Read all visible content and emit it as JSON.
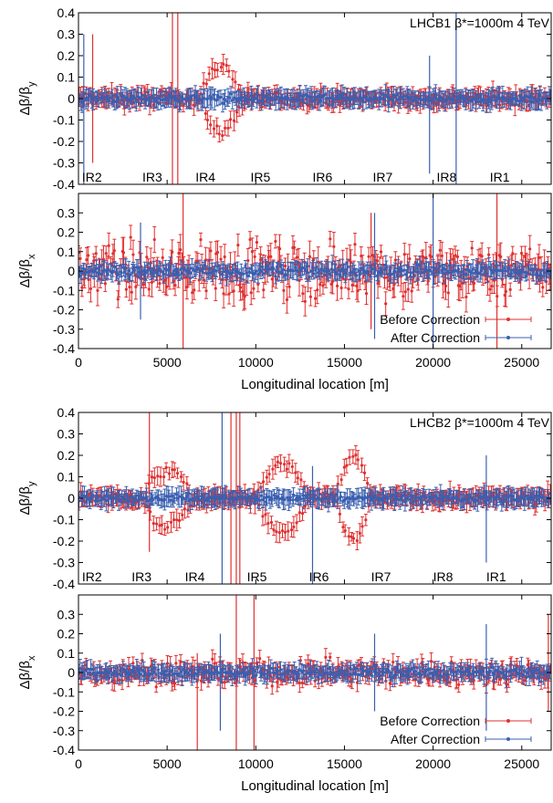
{
  "chart_data": [
    {
      "type": "scatter",
      "title": "LHCB1 β*=1000m 4 TeV",
      "ylabel": "Δβ/β_y",
      "ylabel_main": "Δβ/β",
      "ylabel_sub": "y",
      "xlabel": "",
      "xlim": [
        0,
        26659
      ],
      "ylim": [
        -0.4,
        0.4
      ],
      "yticks": [
        "-0.4",
        "-0.3",
        "-0.2",
        "-0.1",
        "0",
        "0.1",
        "0.2",
        "0.3",
        "0.4"
      ],
      "ip_labels": [
        {
          "text": "IR2",
          "x": 200
        },
        {
          "text": "IR3",
          "x": 3600
        },
        {
          "text": "IR4",
          "x": 6600
        },
        {
          "text": "IR5",
          "x": 9700
        },
        {
          "text": "IR6",
          "x": 13200
        },
        {
          "text": "IR7",
          "x": 16600
        },
        {
          "text": "IR8",
          "x": 20200
        },
        {
          "text": "IR1",
          "x": 23200
        }
      ],
      "series": [
        {
          "name": "Before Correction",
          "color": "#e03030",
          "spread": 0.045,
          "bumps": [
            {
              "x0": 6800,
              "x1": 9300,
              "amp": 0.15
            }
          ],
          "spikes": [
            {
              "x": 5300,
              "lo": -0.4,
              "hi": 0.4
            },
            {
              "x": 5600,
              "lo": -0.4,
              "hi": 0.4
            },
            {
              "x": 800,
              "lo": -0.3,
              "hi": 0.3
            }
          ]
        },
        {
          "name": "After Correction",
          "color": "#3a5fb0",
          "spread": 0.025,
          "bumps": [],
          "spikes": [
            {
              "x": 300,
              "lo": -0.4,
              "hi": 0.3
            },
            {
              "x": 21300,
              "lo": -0.4,
              "hi": 0.4
            },
            {
              "x": 19800,
              "lo": -0.35,
              "hi": 0.2
            }
          ]
        }
      ]
    },
    {
      "type": "scatter",
      "title": "",
      "ylabel": "Δβ/β_x",
      "ylabel_main": "Δβ/β",
      "ylabel_sub": "x",
      "xlabel": "Longitudinal location [m]",
      "xlim": [
        0,
        26659
      ],
      "ylim": [
        -0.4,
        0.4
      ],
      "xticks": [
        "0",
        "5000",
        "10000",
        "15000",
        "20000",
        "25000"
      ],
      "yticks": [
        "-0.4",
        "-0.3",
        "-0.2",
        "-0.1",
        "0",
        "0.1",
        "0.2",
        "0.3"
      ],
      "series": [
        {
          "name": "Before Correction",
          "color": "#e03030",
          "spread": 0.2,
          "bumps": [],
          "spikes": [
            {
              "x": 5900,
              "lo": -0.4,
              "hi": 0.4
            },
            {
              "x": 23600,
              "lo": -0.4,
              "hi": 0.4
            },
            {
              "x": 16500,
              "lo": -0.3,
              "hi": 0.3
            }
          ]
        },
        {
          "name": "After Correction",
          "color": "#3a5fb0",
          "spread": 0.04,
          "bumps": [],
          "spikes": [
            {
              "x": 20000,
              "lo": -0.4,
              "hi": 0.4
            },
            {
              "x": 16700,
              "lo": -0.35,
              "hi": 0.3
            },
            {
              "x": 3500,
              "lo": -0.25,
              "hi": 0.25
            }
          ]
        }
      ],
      "legend": {
        "position": "bottom-right",
        "items": [
          "Before Correction",
          "After Correction"
        ]
      }
    },
    {
      "type": "scatter",
      "title": "LHCB2 β*=1000m 4 TeV",
      "ylabel": "Δβ/β_y",
      "ylabel_main": "Δβ/β",
      "ylabel_sub": "y",
      "xlabel": "",
      "xlim": [
        0,
        26659
      ],
      "ylim": [
        -0.4,
        0.4
      ],
      "yticks": [
        "-0.4",
        "-0.3",
        "-0.2",
        "-0.1",
        "0",
        "0.1",
        "0.2",
        "0.3",
        "0.4"
      ],
      "ip_labels": [
        {
          "text": "IR2",
          "x": 200
        },
        {
          "text": "IR3",
          "x": 3000
        },
        {
          "text": "IR4",
          "x": 6000
        },
        {
          "text": "IR5",
          "x": 9500
        },
        {
          "text": "IR6",
          "x": 13000
        },
        {
          "text": "IR7",
          "x": 16500
        },
        {
          "text": "IR8",
          "x": 20000
        },
        {
          "text": "IR1",
          "x": 23000
        }
      ],
      "series": [
        {
          "name": "Before Correction",
          "color": "#e03030",
          "spread": 0.04,
          "bumps": [
            {
              "x0": 3500,
              "x1": 6500,
              "amp": 0.13
            },
            {
              "x0": 10000,
              "x1": 13000,
              "amp": 0.16
            },
            {
              "x0": 14500,
              "x1": 16500,
              "amp": 0.2
            }
          ],
          "spikes": [
            {
              "x": 8600,
              "lo": -0.4,
              "hi": 0.4
            },
            {
              "x": 8900,
              "lo": -0.4,
              "hi": 0.4
            },
            {
              "x": 9100,
              "lo": -0.4,
              "hi": 0.4
            },
            {
              "x": 4000,
              "lo": -0.25,
              "hi": 0.4
            }
          ]
        },
        {
          "name": "After Correction",
          "color": "#3a5fb0",
          "spread": 0.025,
          "bumps": [],
          "spikes": [
            {
              "x": 8100,
              "lo": -0.4,
              "hi": 0.4
            },
            {
              "x": 13200,
              "lo": -0.4,
              "hi": 0.15
            },
            {
              "x": 23000,
              "lo": -0.3,
              "hi": 0.2
            }
          ]
        }
      ]
    },
    {
      "type": "scatter",
      "title": "",
      "ylabel": "Δβ/β_x",
      "ylabel_main": "Δβ/β",
      "ylabel_sub": "x",
      "xlabel": "Longitudinal location [m]",
      "xlim": [
        0,
        26659
      ],
      "ylim": [
        -0.4,
        0.4
      ],
      "xticks": [
        "0",
        "5000",
        "10000",
        "15000",
        "20000",
        "25000"
      ],
      "yticks": [
        "-0.4",
        "-0.3",
        "-0.2",
        "-0.1",
        "0",
        "0.1",
        "0.2",
        "0.3"
      ],
      "series": [
        {
          "name": "Before Correction",
          "color": "#e03030",
          "spread": 0.09,
          "bumps": [],
          "spikes": [
            {
              "x": 8900,
              "lo": -0.4,
              "hi": 0.4
            },
            {
              "x": 9900,
              "lo": -0.4,
              "hi": 0.4
            },
            {
              "x": 6700,
              "lo": -0.4,
              "hi": 0.1
            },
            {
              "x": 26500,
              "lo": -0.2,
              "hi": 0.3
            }
          ]
        },
        {
          "name": "After Correction",
          "color": "#3a5fb0",
          "spread": 0.035,
          "bumps": [],
          "spikes": [
            {
              "x": 23000,
              "lo": -0.3,
              "hi": 0.25
            },
            {
              "x": 8000,
              "lo": -0.3,
              "hi": 0.2
            },
            {
              "x": 16700,
              "lo": -0.2,
              "hi": 0.2
            }
          ]
        }
      ],
      "legend": {
        "position": "bottom-right",
        "items": [
          "Before Correction",
          "After Correction"
        ]
      }
    }
  ]
}
